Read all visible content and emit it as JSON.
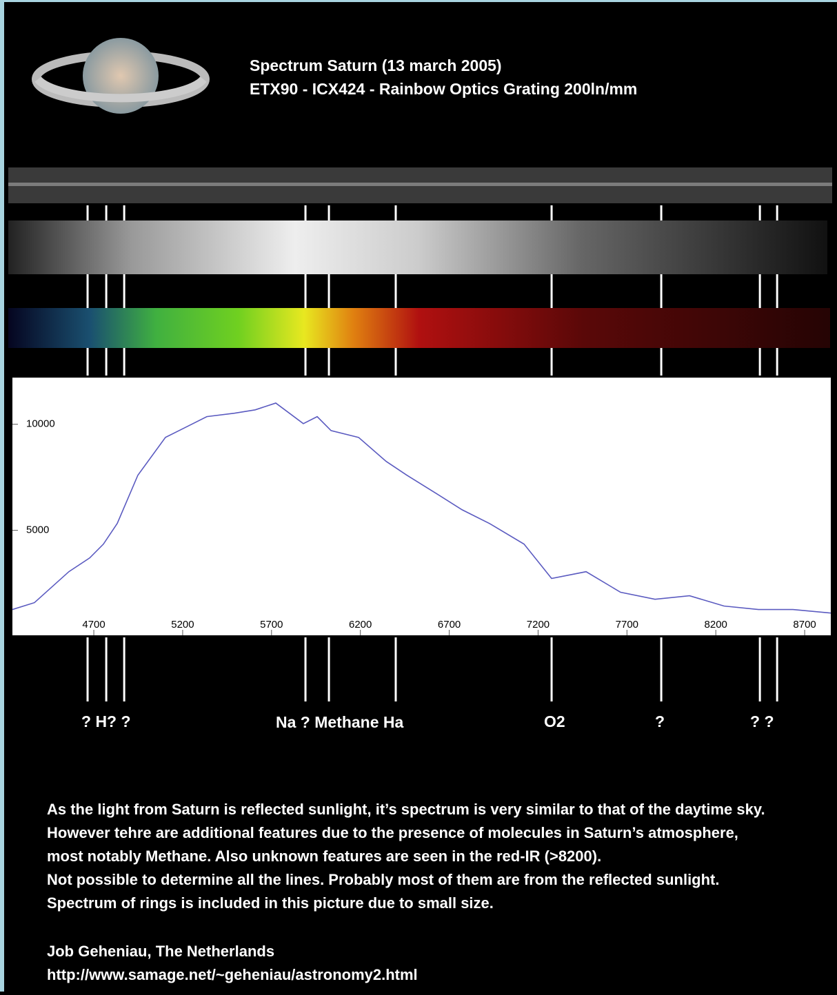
{
  "header": {
    "title": "Spectrum Saturn (13 march 2005)",
    "subtitle": "ETX90 - ICX424 - Rainbow Optics Grating 200ln/mm"
  },
  "chart_data": {
    "type": "line",
    "x": [
      4242,
      4366,
      4560,
      4677,
      4754,
      4832,
      4948,
      5103,
      5220,
      5336,
      5491,
      5608,
      5724,
      5879,
      5957,
      6035,
      6190,
      6345,
      6461,
      6617,
      6772,
      6927,
      7121,
      7276,
      7470,
      7664,
      7858,
      8052,
      8246,
      8440,
      8634,
      8847
    ],
    "values": [
      1266,
      1590,
      3052,
      3700,
      4350,
      5325,
      7600,
      9380,
      9870,
      10360,
      10520,
      10680,
      11000,
      10030,
      10360,
      9700,
      9380,
      8250,
      7600,
      6790,
      5970,
      5320,
      4350,
      2730,
      3050,
      2080,
      1750,
      1915,
      1430,
      1266,
      1266,
      1100
    ],
    "color": "#5a5ac0",
    "xlim": [
      4242,
      8847
    ],
    "ylim": [
      50,
      12200
    ],
    "xticks": [
      4700,
      5200,
      5700,
      6200,
      6700,
      7200,
      7700,
      8200,
      8700
    ],
    "yticks": [
      5000,
      10000
    ],
    "features": [
      4665,
      4770,
      4871,
      5891,
      6023,
      6399,
      7276,
      7893,
      8448,
      8545
    ]
  },
  "feature_labels": [
    "? H? ?",
    "Na ? Methane Ha",
    "O2",
    "?",
    "? ?"
  ],
  "notes": {
    "lines": [
      "As the light from Saturn is reflected sunlight, it’s spectrum is very similar to that of the daytime sky.",
      "However tehre are additional features due to the presence of molecules in Saturn’s atmosphere,",
      "most notably Methane. Also unknown features are seen in the red-IR (>8200).",
      "Not possible to determine all the lines. Probably most of them are from the reflected sunlight.",
      "Spectrum of rings is included in this picture due to small size."
    ],
    "author": "Job Geheniau, The Netherlands",
    "url": "http://www.samage.net/~geheniau/astronomy2.html"
  }
}
